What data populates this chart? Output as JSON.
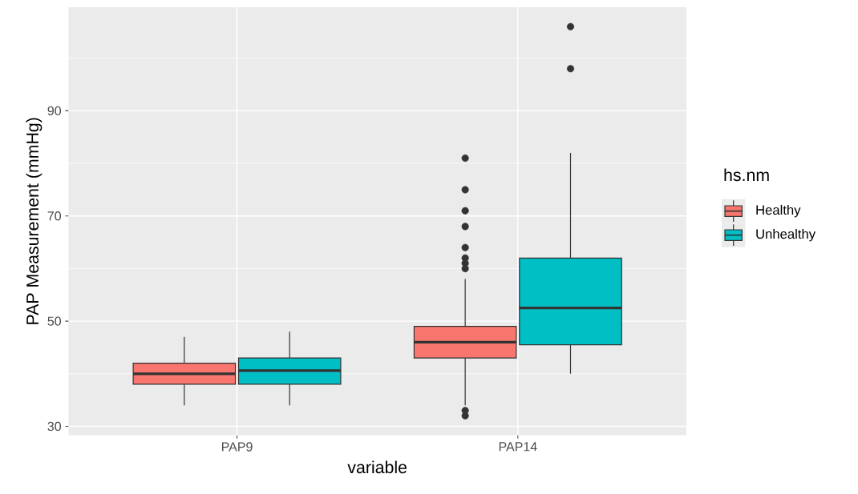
{
  "chart_data": {
    "type": "box",
    "xlabel": "variable",
    "ylabel": "PAP Measurement (mmHg)",
    "legend_title": "hs.nm",
    "categories": [
      "PAP9",
      "PAP14"
    ],
    "series": [
      {
        "name": "Healthy",
        "color": "#f8766d",
        "boxes": [
          {
            "low": 34,
            "q1": 38,
            "median": 40,
            "q3": 42,
            "high": 47
          },
          {
            "low": 34,
            "q1": 43,
            "median": 46,
            "q3": 49,
            "high": 58,
            "outliers": [
              81,
              75,
              71,
              68,
              64,
              62,
              61,
              60,
              33,
              32
            ]
          }
        ]
      },
      {
        "name": "Unhealthy",
        "color": "#00bfc4",
        "boxes": [
          {
            "low": 34,
            "q1": 38,
            "median": 40.6,
            "q3": 43,
            "high": 48
          },
          {
            "low": 40,
            "q1": 45.5,
            "median": 52.5,
            "q3": 62,
            "high": 82,
            "outliers": [
              106,
              98
            ]
          }
        ]
      }
    ],
    "ylim": [
      28.3,
      109.7
    ],
    "yticks": [
      30,
      50,
      70,
      90
    ],
    "grid": true,
    "legend": "right"
  }
}
